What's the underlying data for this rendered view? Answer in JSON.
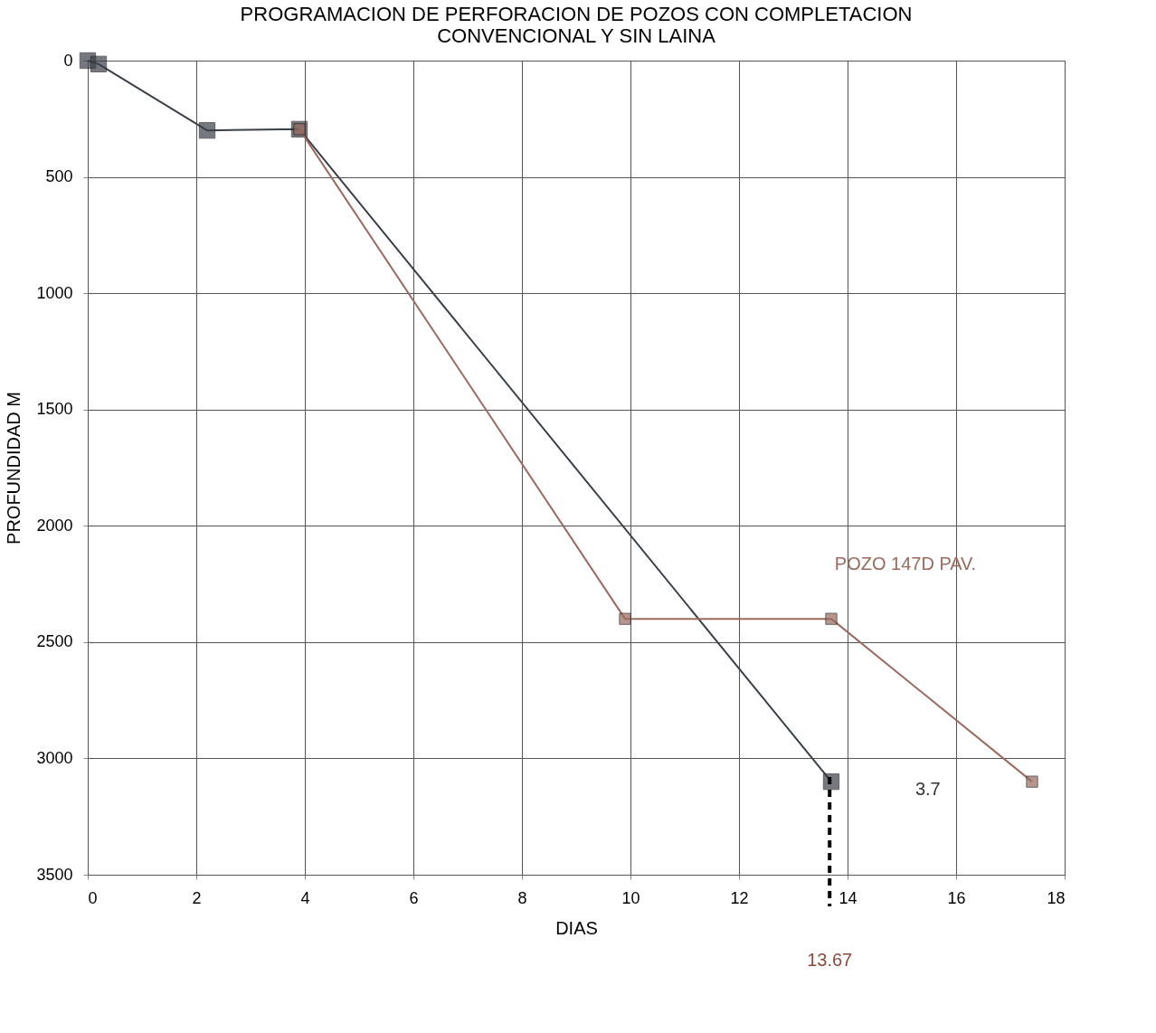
{
  "chart_data": {
    "type": "line",
    "title": [
      "PROGRAMACION DE PERFORACION DE POZOS CON COMPLETACION",
      "CONVENCIONAL Y SIN LAINA"
    ],
    "xlabel": "DIAS",
    "ylabel": "PROFUNDIDAD  M",
    "series": [
      {
        "color": "#3b4048",
        "x": [
          0,
          0.2,
          2.2,
          3.9,
          13.7
        ],
        "values": [
          0,
          15,
          300,
          295,
          3100
        ]
      },
      {
        "name": "POZO 147D PAV.",
        "color": "#9a6a5e",
        "x": [
          3.9,
          9.9,
          13.7,
          17.4
        ],
        "values": [
          295,
          2400,
          2400,
          3100
        ]
      }
    ],
    "annotations": [
      "3.7"
    ],
    "ref_lines": [
      {
        "axis": "x",
        "value": 13.67,
        "label": "13.67",
        "color": "#000000",
        "line_style": "dashed"
      }
    ],
    "xlim": [
      0,
      18
    ],
    "xticks": [
      0,
      2,
      4,
      6,
      8,
      10,
      12,
      14,
      16,
      18
    ],
    "ylim": [
      3500,
      0
    ],
    "yticks": [
      0,
      500,
      1000,
      1500,
      2000,
      2500,
      3000,
      3500
    ],
    "grid": true,
    "marker": "square",
    "line_style": "solid"
  }
}
